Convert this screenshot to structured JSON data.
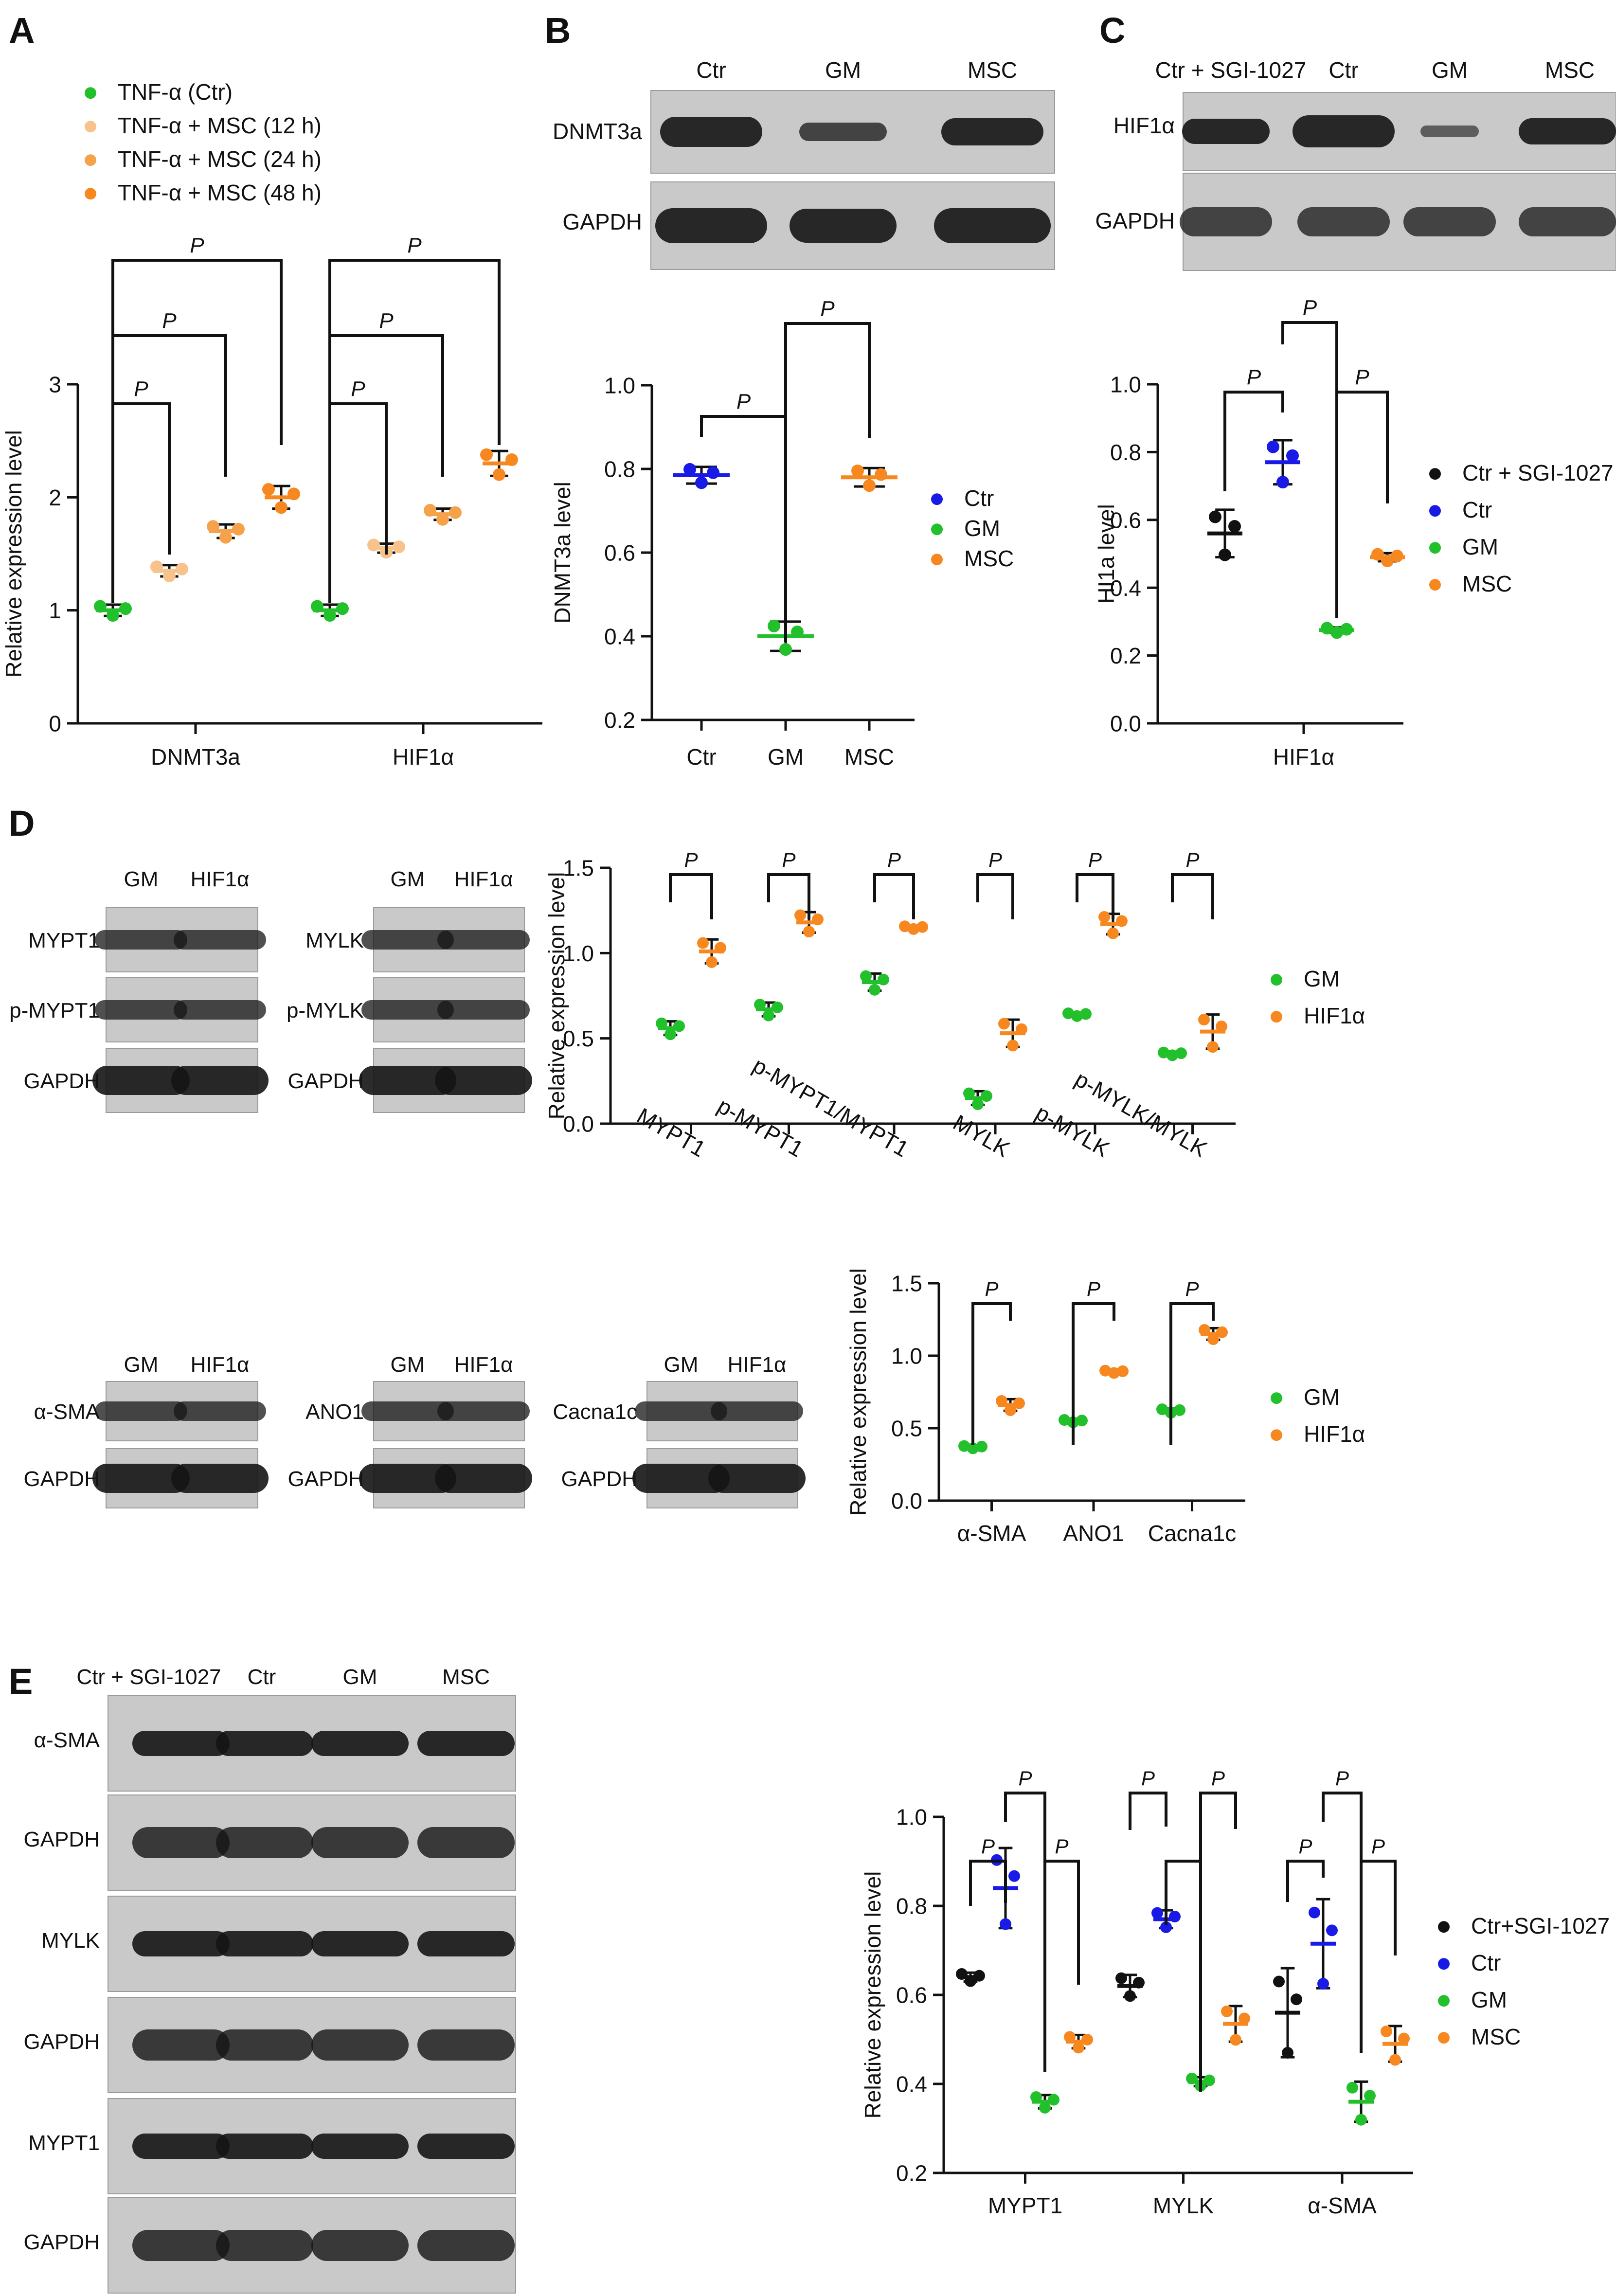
{
  "panel_labels": [
    "A",
    "B",
    "C",
    "D",
    "E"
  ],
  "colors": {
    "green": "#22c02a",
    "blue": "#1a1ae6",
    "orange": "#f7871f",
    "light_orange": "#f7c28c",
    "mid_orange": "#f5a24a",
    "black": "#111111"
  },
  "sig_mark": "P",
  "blots": {
    "B": {
      "columns": [
        "Ctr",
        "GM",
        "MSC"
      ],
      "rows": [
        "DNMT3a",
        "GAPDH"
      ]
    },
    "C": {
      "columns": [
        "Ctr + SGI-1027",
        "Ctr",
        "GM",
        "MSC"
      ],
      "rows": [
        "HIF1α",
        "GAPDH"
      ]
    },
    "D1": {
      "columns": [
        "GM",
        "HIF1α"
      ],
      "rows": [
        "MYPT1",
        "p-MYPT1",
        "GAPDH"
      ]
    },
    "D2": {
      "columns": [
        "GM",
        "HIF1α"
      ],
      "rows": [
        "MYLK",
        "p-MYLK",
        "GAPDH"
      ]
    },
    "D3": {
      "columns": [
        "GM",
        "HIF1α"
      ],
      "rows": [
        "α-SMA",
        "GAPDH"
      ]
    },
    "D4": {
      "columns": [
        "GM",
        "HIF1α"
      ],
      "rows": [
        "ANO1",
        "GAPDH"
      ]
    },
    "D5": {
      "columns": [
        "GM",
        "HIF1α"
      ],
      "rows": [
        "Cacna1c",
        "GAPDH"
      ]
    },
    "E": {
      "columns": [
        "Ctr + SGI-1027",
        "Ctr",
        "GM",
        "MSC"
      ],
      "rows": [
        "α-SMA",
        "GAPDH",
        "MYLK",
        "GAPDH",
        "MYPT1",
        "GAPDH"
      ]
    }
  },
  "chart_data": [
    {
      "id": "A",
      "type": "scatter",
      "ylabel": "Relative expression level",
      "ylim": [
        0,
        3
      ],
      "yticks": [
        0,
        1,
        2,
        3
      ],
      "categories": [
        "DNMT3a",
        "HIF1α"
      ],
      "legend": [
        "TNF-α (Ctr)",
        "TNF-α + MSC (12 h)",
        "TNF-α + MSC (24 h)",
        "TNF-α + MSC (48 h)"
      ],
      "legend_placement": "top-left",
      "series": [
        {
          "values": [
            1.0,
            1.0
          ],
          "sd": [
            0.05,
            0.05
          ]
        },
        {
          "values": [
            1.35,
            1.55
          ],
          "sd": [
            0.05,
            0.04
          ]
        },
        {
          "values": [
            1.7,
            1.85
          ],
          "sd": [
            0.06,
            0.05
          ]
        },
        {
          "values": [
            2.0,
            2.3
          ],
          "sd": [
            0.1,
            0.11
          ]
        }
      ]
    },
    {
      "id": "B",
      "type": "scatter",
      "ylabel": "DNMT3a level",
      "ylim": [
        0.2,
        1.0
      ],
      "yticks": [
        0.2,
        0.4,
        0.6,
        0.8,
        1.0
      ],
      "categories": [
        "Ctr",
        "GM",
        "MSC"
      ],
      "legend": [
        "Ctr",
        "GM",
        "MSC"
      ],
      "legend_placement": "right",
      "values": [
        0.785,
        0.4,
        0.78
      ],
      "sd": [
        0.02,
        0.035,
        0.022
      ]
    },
    {
      "id": "C",
      "type": "scatter",
      "ylabel": "HI1a level",
      "xlabel": "HIF1α",
      "ylim": [
        0.0,
        1.0
      ],
      "yticks": [
        0.0,
        0.2,
        0.4,
        0.6,
        0.8,
        1.0
      ],
      "legend": [
        "Ctr + SGI-1027",
        "Ctr",
        "GM",
        "MSC"
      ],
      "legend_placement": "right",
      "values": [
        0.56,
        0.77,
        0.275,
        0.49
      ],
      "sd": [
        0.07,
        0.065,
        0.008,
        0.012
      ]
    },
    {
      "id": "D-upper",
      "type": "scatter",
      "ylabel": "Relative expression level",
      "ylim": [
        0.0,
        1.5
      ],
      "yticks": [
        0.0,
        0.5,
        1.0,
        1.5
      ],
      "categories": [
        "MYPT1",
        "p-MYPT1",
        "p-MYPT1/MYPT1",
        "MYLK",
        "p-MYLK",
        "p-MYLK/MYLK"
      ],
      "legend": [
        "GM",
        "HIF1α"
      ],
      "legend_placement": "right",
      "series": [
        {
          "values": [
            0.56,
            0.67,
            0.83,
            0.15,
            0.64,
            0.41
          ],
          "sd": [
            0.04,
            0.04,
            0.05,
            0.04,
            0.01,
            0.01
          ]
        },
        {
          "values": [
            1.01,
            1.18,
            1.15,
            0.53,
            1.17,
            0.54
          ],
          "sd": [
            0.07,
            0.06,
            0.01,
            0.08,
            0.06,
            0.1
          ]
        }
      ]
    },
    {
      "id": "D-lower",
      "type": "scatter",
      "ylabel": "Relative expression level",
      "ylim": [
        0.0,
        1.5
      ],
      "yticks": [
        0.0,
        0.5,
        1.0,
        1.5
      ],
      "categories": [
        "α-SMA",
        "ANO1",
        "Cacna1c"
      ],
      "legend": [
        "GM",
        "HIF1α"
      ],
      "legend_placement": "right",
      "series": [
        {
          "values": [
            0.37,
            0.55,
            0.62
          ],
          "sd": [
            0.01,
            0.01,
            0.015
          ]
        },
        {
          "values": [
            0.66,
            0.89,
            1.15
          ],
          "sd": [
            0.04,
            0.01,
            0.04
          ]
        }
      ]
    },
    {
      "id": "E",
      "type": "scatter",
      "ylabel": "Relative expression level",
      "ylim": [
        0.2,
        1.0
      ],
      "yticks": [
        0.2,
        0.4,
        0.6,
        0.8,
        1.0
      ],
      "categories": [
        "MYPT1",
        "MYLK",
        "α-SMA"
      ],
      "legend": [
        "Ctr+SGI-1027",
        "Ctr",
        "GM",
        "MSC"
      ],
      "legend_placement": "right",
      "series": [
        {
          "values": [
            0.64,
            0.62,
            0.56
          ],
          "sd": [
            0.01,
            0.025,
            0.1
          ]
        },
        {
          "values": [
            0.84,
            0.77,
            0.715
          ],
          "sd": [
            0.09,
            0.02,
            0.1
          ]
        },
        {
          "values": [
            0.36,
            0.405,
            0.36
          ],
          "sd": [
            0.015,
            0.01,
            0.045
          ]
        },
        {
          "values": [
            0.495,
            0.535,
            0.49
          ],
          "sd": [
            0.015,
            0.04,
            0.04
          ]
        }
      ]
    }
  ]
}
